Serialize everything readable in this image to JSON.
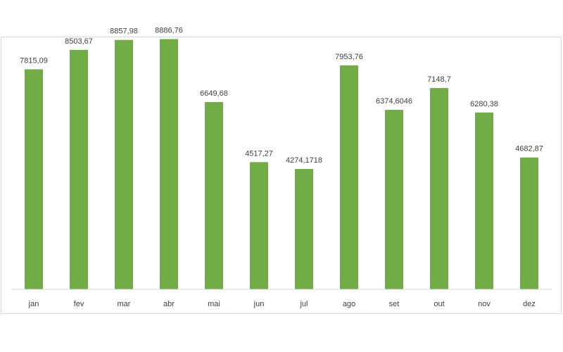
{
  "chart_data": {
    "type": "bar",
    "categories": [
      "jan",
      "fev",
      "mar",
      "abr",
      "mai",
      "jun",
      "jul",
      "ago",
      "set",
      "out",
      "nov",
      "dez"
    ],
    "values": [
      7815.09,
      8503.67,
      8857.98,
      8886.76,
      6649.68,
      4517.27,
      4274.1718,
      7953.76,
      6374.6046,
      7148.7,
      6280.38,
      4682.87
    ],
    "value_labels": [
      "7815,09",
      "8503,67",
      "8857,98",
      "8886,76",
      "6649,68",
      "4517,27",
      "4274,1718",
      "7953,76",
      "6374,6046",
      "7148,7",
      "6280,38",
      "4682,87"
    ],
    "title": "",
    "xlabel": "",
    "ylabel": "",
    "ylim": [
      0,
      10000
    ],
    "grid": false,
    "legend": "none",
    "bar_color": "#70ad47",
    "axis_color": "#d9d9d9",
    "text_color": "#404040"
  }
}
